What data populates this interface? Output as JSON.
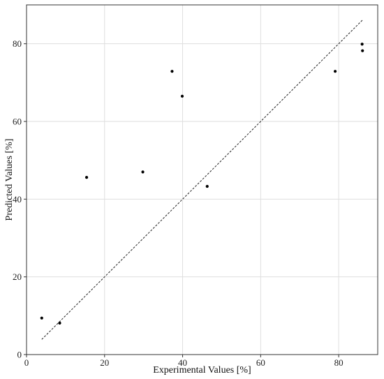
{
  "chart_data": {
    "type": "scatter",
    "title": "",
    "xlabel": "Experimental Values [%]",
    "ylabel": "Predicted Values [%]",
    "xlim": [
      0,
      90
    ],
    "ylim": [
      0,
      90
    ],
    "x_ticks": [
      0,
      20,
      40,
      60,
      80
    ],
    "y_ticks": [
      0,
      20,
      40,
      60,
      80
    ],
    "grid": true,
    "series": [
      {
        "points": [
          {
            "x": 3.9,
            "y": 9.4
          },
          {
            "x": 8.5,
            "y": 8.1
          },
          {
            "x": 15.4,
            "y": 45.6
          },
          {
            "x": 29.8,
            "y": 47.0
          },
          {
            "x": 37.3,
            "y": 72.9
          },
          {
            "x": 39.9,
            "y": 66.5
          },
          {
            "x": 46.3,
            "y": 43.3
          },
          {
            "x": 79.1,
            "y": 72.9
          },
          {
            "x": 86.0,
            "y": 79.9
          },
          {
            "x": 86.1,
            "y": 78.2
          }
        ]
      }
    ],
    "reference_line": {
      "from": [
        3.9,
        3.9
      ],
      "to": [
        86.1,
        86.1
      ],
      "style": "dashed"
    }
  }
}
